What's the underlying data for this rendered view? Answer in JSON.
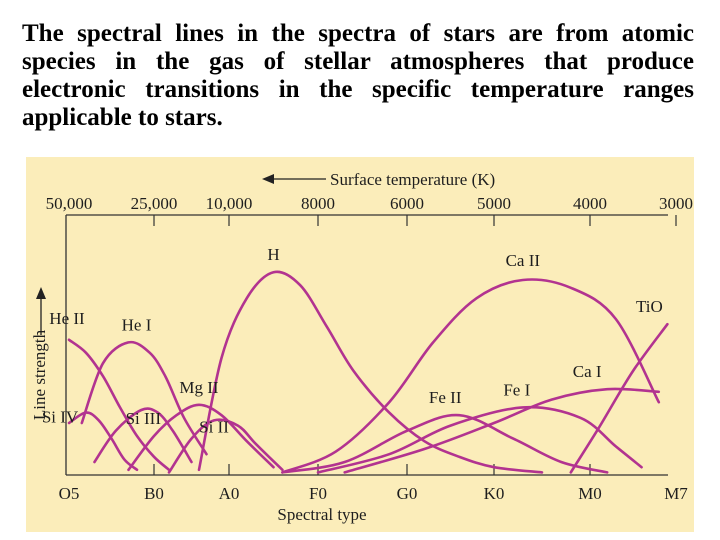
{
  "caption": "The spectral lines in the spectra of stars are from atomic species in the gas of stellar atmospheres that produce electronic transitions in the specific temperature ranges applicable to stars.",
  "chart_data": {
    "type": "line",
    "title": "",
    "top_axis_label": "Surface temperature (K)",
    "xlabel": "Spectral type",
    "ylabel": "Line strength",
    "x": [
      "O5",
      "B0",
      "A0",
      "F0",
      "G0",
      "K0",
      "M0",
      "M7"
    ],
    "top_ticks": [
      "50,000",
      "25,000",
      "10,000",
      "8000",
      "6000",
      "5000",
      "4000",
      "3000"
    ],
    "xlim": [
      0,
      7
    ],
    "ylim": [
      0,
      100
    ],
    "grid": false,
    "legend": "labels placed next to curves",
    "curve_color": "#b23390",
    "series": [
      {
        "name": "H",
        "x": [
          1.6,
          1.9,
          2.2,
          2.5,
          2.8,
          3.1,
          3.4,
          3.8,
          4.2,
          4.6,
          5.0,
          5.5
        ],
        "y": [
          2,
          45,
          68,
          78,
          73,
          57,
          40,
          24,
          13,
          7,
          3,
          1
        ]
      },
      {
        "name": "He II",
        "x": [
          0.0,
          0.2,
          0.4,
          0.6,
          0.8,
          1.0,
          1.2
        ],
        "y": [
          52,
          47,
          38,
          26,
          15,
          7,
          2
        ]
      },
      {
        "name": "He I",
        "x": [
          0.15,
          0.4,
          0.7,
          0.95,
          1.15,
          1.4,
          1.7
        ],
        "y": [
          20,
          43,
          51,
          47,
          38,
          22,
          8
        ]
      },
      {
        "name": "Si IV",
        "x": [
          0.0,
          0.2,
          0.35,
          0.5,
          0.65,
          0.8
        ],
        "y": [
          20,
          24,
          21,
          14,
          6,
          2
        ]
      },
      {
        "name": "Si III",
        "x": [
          0.3,
          0.55,
          0.85,
          1.05,
          1.25,
          1.5
        ],
        "y": [
          5,
          17,
          25,
          24,
          17,
          5
        ]
      },
      {
        "name": "Mg II",
        "x": [
          0.7,
          1.0,
          1.3,
          1.6,
          1.9,
          2.2,
          2.5
        ],
        "y": [
          2,
          15,
          23,
          27,
          23,
          13,
          3
        ]
      },
      {
        "name": "Si II",
        "x": [
          1.2,
          1.5,
          1.8,
          2.1,
          2.3,
          2.6
        ],
        "y": [
          1,
          14,
          21,
          19,
          12,
          2
        ]
      },
      {
        "name": "Ca II",
        "x": [
          2.6,
          3.2,
          3.8,
          4.3,
          4.8,
          5.3,
          5.8,
          6.3,
          6.8
        ],
        "y": [
          1,
          9,
          28,
          51,
          68,
          75,
          72,
          60,
          28
        ]
      },
      {
        "name": "Fe II",
        "x": [
          2.6,
          3.3,
          4.0,
          4.6,
          5.2,
          5.7,
          6.2
        ],
        "y": [
          1,
          5,
          17,
          23,
          14,
          5,
          1
        ]
      },
      {
        "name": "Fe I",
        "x": [
          3.0,
          3.8,
          4.5,
          5.3,
          5.9,
          6.3,
          6.6
        ],
        "y": [
          1,
          8,
          19,
          26,
          22,
          11,
          3
        ]
      },
      {
        "name": "Ca I",
        "x": [
          3.3,
          4.2,
          5.0,
          5.6,
          6.2,
          6.8
        ],
        "y": [
          1,
          10,
          20,
          29,
          33,
          32
        ]
      },
      {
        "name": "TiO",
        "x": [
          5.8,
          6.1,
          6.5,
          6.9
        ],
        "y": [
          1,
          18,
          40,
          58
        ]
      }
    ]
  }
}
